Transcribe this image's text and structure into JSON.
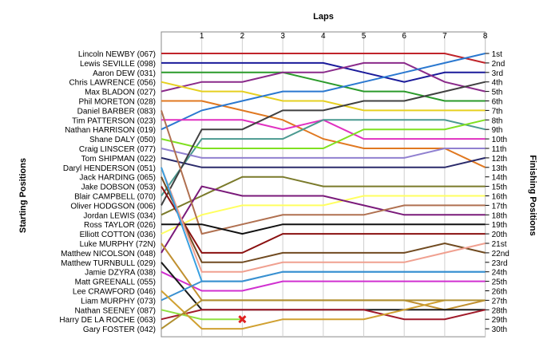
{
  "chart_data": {
    "type": "line",
    "title": "Laps",
    "ylabel_left": "Starting Positions",
    "ylabel_right": "Finishing Positions",
    "laps": [
      1,
      2,
      3,
      4,
      5,
      6,
      7,
      8
    ],
    "xlim": [
      0,
      8
    ],
    "ylim": [
      1,
      30
    ],
    "grid": true,
    "finish_labels": [
      "1st",
      "2nd",
      "3rd",
      "4th",
      "5th",
      "6th",
      "7th",
      "8th",
      "9th",
      "10th",
      "11th",
      "12th",
      "13th",
      "14th",
      "15th",
      "16th",
      "17th",
      "18th",
      "19th",
      "20th",
      "21st",
      "22nd",
      "23rd",
      "24th",
      "25th",
      "26th",
      "27th",
      "28th",
      "29th",
      "30th"
    ],
    "series": [
      {
        "name": "Lincoln NEWBY (067)",
        "color": "#c0242a",
        "positions": [
          1,
          1,
          1,
          1,
          1,
          1,
          1,
          1,
          2
        ]
      },
      {
        "name": "Lewis SEVILLE (098)",
        "color": "#1a1a9a",
        "positions": [
          2,
          2,
          2,
          2,
          2,
          3,
          4,
          3,
          3
        ]
      },
      {
        "name": "Aaron DEW (031)",
        "color": "#2a9a2a",
        "positions": [
          3,
          3,
          3,
          3,
          4,
          5,
          5,
          6,
          6
        ]
      },
      {
        "name": "Chris LAWRENCE (056)",
        "color": "#8a2a8a",
        "positions": [
          5,
          4,
          4,
          3,
          3,
          2,
          2,
          4,
          5
        ]
      },
      {
        "name": "Max BLADON (027)",
        "color": "#e6d020",
        "positions": [
          4,
          5,
          5,
          6,
          6,
          7,
          7,
          7,
          7
        ]
      },
      {
        "name": "Phil MORETON (028)",
        "color": "#e07820",
        "positions": [
          6,
          6,
          7,
          8,
          10,
          11,
          11,
          11,
          13
        ]
      },
      {
        "name": "Daniel BARBER (083)",
        "color": "#2a78d0",
        "positions": [
          9,
          7,
          6,
          5,
          5,
          4,
          3,
          2,
          1
        ]
      },
      {
        "name": "Tim PATTERSON (023)",
        "color": "#e030c0",
        "positions": [
          8,
          8,
          8,
          9,
          8,
          10,
          10,
          10,
          10
        ]
      },
      {
        "name": "Nathan HARRISON (019)",
        "color": "#4a9a90",
        "positions": [
          16,
          10,
          10,
          10,
          8,
          8,
          8,
          8,
          9
        ]
      },
      {
        "name": "Shane DALY (050)",
        "color": "#80e020",
        "positions": [
          10,
          11,
          11,
          11,
          11,
          9,
          9,
          9,
          8
        ]
      },
      {
        "name": "Craig LINSCER (077)",
        "color": "#9080d0",
        "positions": [
          11,
          12,
          12,
          12,
          12,
          12,
          12,
          11,
          11
        ]
      },
      {
        "name": "Tom SHIPMAN (022)",
        "color": "#2a2a6a",
        "positions": [
          12,
          13,
          13,
          13,
          13,
          13,
          13,
          13,
          12
        ]
      },
      {
        "name": "Daryl HENDERSON (051)",
        "color": "#7a7a2a",
        "positions": [
          18,
          16,
          14,
          14,
          15,
          15,
          15,
          15,
          15
        ]
      },
      {
        "name": "Jack HARDING (065)",
        "color": "#404040",
        "positions": [
          17,
          9,
          9,
          7,
          7,
          6,
          6,
          5,
          4
        ]
      },
      {
        "name": "Jake DOBSON (053)",
        "color": "#ffff60",
        "positions": [
          20,
          18,
          17,
          17,
          17,
          16,
          16,
          16,
          16
        ]
      },
      {
        "name": "Blair CAMPBELL (070)",
        "color": "#7a1a7a",
        "positions": [
          22,
          15,
          16,
          16,
          16,
          17,
          18,
          18,
          18
        ]
      },
      {
        "name": "Oliver HODGSON (006)",
        "color": "#b07050",
        "positions": [
          7,
          20,
          19,
          18,
          18,
          18,
          17,
          17,
          17
        ]
      },
      {
        "name": "Jordan LEWIS (034)",
        "color": "#101010",
        "positions": [
          19,
          19,
          20,
          19,
          19,
          19,
          19,
          19,
          19
        ]
      },
      {
        "name": "Ross TAYLOR (026)",
        "color": "#8a1010",
        "positions": [
          15,
          22,
          22,
          20,
          20,
          20,
          20,
          20,
          20
        ]
      },
      {
        "name": "Elliott COTTON (036)",
        "color": "#704a20",
        "positions": [
          14,
          23,
          23,
          22,
          22,
          22,
          22,
          21,
          22
        ]
      },
      {
        "name": "Luke MURPHY (72N)",
        "color": "#f0a090",
        "positions": [
          13,
          24,
          24,
          23,
          23,
          23,
          23,
          22,
          21
        ]
      },
      {
        "name": "Matthew NICOLSON (048)",
        "color": "#3aa0e0",
        "positions": [
          13,
          25,
          25,
          24,
          24,
          24,
          24,
          24,
          24
        ]
      },
      {
        "name": "Matthew TURNBULL (029)",
        "color": "#d030d0",
        "positions": [
          24,
          26,
          26,
          25,
          25,
          25,
          25,
          25,
          25
        ]
      },
      {
        "name": "Jamie DZYRA (038)",
        "color": "#c09030",
        "positions": [
          21,
          27,
          27,
          27,
          27,
          27,
          27,
          28,
          27
        ]
      },
      {
        "name": "Matt GREENALL (055)",
        "color": "#1a1a1a",
        "positions": [
          23,
          28,
          28,
          28,
          28,
          28,
          28,
          28,
          28
        ]
      },
      {
        "name": "Lee CRAWFORD (046)",
        "color": "#a01a2a",
        "positions": [
          29,
          28,
          28,
          28,
          28,
          28,
          29,
          29,
          28
        ]
      },
      {
        "name": "Liam MURPHY (073)",
        "color": "#3a90d0",
        "positions": [
          27,
          25,
          25,
          24,
          24,
          24,
          24,
          24,
          24
        ]
      },
      {
        "name": "Nathan SEENEY (087)",
        "color": "#90e040",
        "positions": [
          28,
          29,
          29
        ]
      },
      {
        "name": "Harry DE LA ROCHE (063)",
        "color": "#d0a030",
        "positions": [
          26,
          30,
          30,
          29,
          29,
          29,
          28,
          27
        ]
      },
      {
        "name": "Gary FOSTER (042)",
        "color": "#b09030",
        "positions": [
          30,
          27,
          27,
          27,
          27,
          27,
          27,
          27,
          27
        ]
      }
    ],
    "retired": {
      "driver": "Nathan SEENEY (087)",
      "lap": 2,
      "position": 29,
      "marker_color": "#e02020"
    }
  }
}
